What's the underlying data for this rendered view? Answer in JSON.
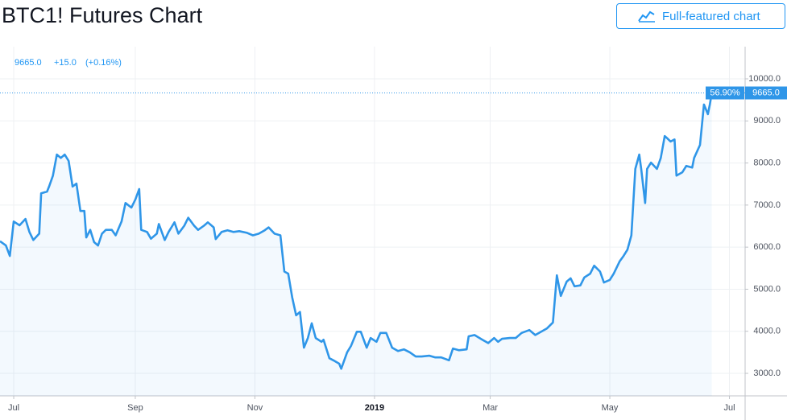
{
  "header": {
    "title": "BTC1! Futures Chart",
    "button": "Full-featured chart"
  },
  "chart_data": {
    "type": "line",
    "quote": {
      "last": "9665.0",
      "change": "+15.0",
      "change_pct": "(+0.16%)"
    },
    "price_tag": {
      "value": 9665,
      "label": "9665.0",
      "percent": "56.90%"
    },
    "color": "#2f96e8",
    "grid": true,
    "x": [
      0,
      3,
      5,
      7,
      10,
      13,
      15,
      17,
      20,
      21,
      24,
      25,
      27,
      29,
      31,
      33,
      35,
      37,
      39,
      41,
      43,
      44,
      46,
      48,
      50,
      52,
      54,
      57,
      59,
      62,
      64,
      67,
      69,
      71,
      72,
      75,
      77,
      80,
      81,
      84,
      86,
      89,
      91,
      94,
      96,
      99,
      101,
      104,
      106,
      109,
      110,
      113,
      116,
      119,
      122,
      126,
      129,
      132,
      135,
      137,
      140,
      143,
      145,
      147,
      149,
      151,
      153,
      155,
      157,
      159,
      161,
      164,
      165,
      168,
      170,
      173,
      174,
      177,
      179,
      182,
      184,
      187,
      189,
      192,
      194,
      197,
      200,
      203,
      206,
      209,
      212,
      215,
      219,
      222,
      225,
      229,
      231,
      234,
      238,
      239,
      242,
      246,
      249,
      252,
      254,
      256,
      260,
      263,
      266,
      270,
      273,
      276,
      279,
      282,
      284,
      286,
      289,
      291,
      293,
      296,
      298,
      301,
      303,
      306,
      308,
      311,
      313,
      316,
      318,
      320,
      322,
      324,
      326,
      327,
      329,
      330,
      332,
      335,
      337,
      339,
      340,
      342,
      344,
      345,
      348,
      350,
      353,
      354,
      357,
      359,
      361,
      362,
      363
    ],
    "values": [
      6140,
      6040,
      5790,
      6610,
      6520,
      6670,
      6360,
      6170,
      6320,
      7280,
      7320,
      7440,
      7700,
      8200,
      8120,
      8200,
      8050,
      7440,
      7510,
      6860,
      6860,
      6230,
      6410,
      6120,
      6040,
      6320,
      6410,
      6410,
      6280,
      6610,
      7050,
      6940,
      7130,
      7380,
      6410,
      6360,
      6200,
      6320,
      6550,
      6170,
      6360,
      6590,
      6320,
      6510,
      6700,
      6510,
      6410,
      6510,
      6590,
      6470,
      6190,
      6360,
      6400,
      6360,
      6380,
      6340,
      6280,
      6320,
      6400,
      6470,
      6320,
      6280,
      5420,
      5370,
      4810,
      4380,
      4460,
      3610,
      3840,
      4190,
      3840,
      3750,
      3800,
      3360,
      3310,
      3230,
      3110,
      3500,
      3650,
      3990,
      3990,
      3610,
      3840,
      3750,
      3960,
      3960,
      3610,
      3530,
      3570,
      3500,
      3400,
      3400,
      3420,
      3380,
      3380,
      3310,
      3590,
      3550,
      3570,
      3880,
      3910,
      3800,
      3720,
      3840,
      3750,
      3820,
      3840,
      3840,
      3960,
      4030,
      3910,
      3990,
      4070,
      4210,
      5330,
      4840,
      5180,
      5260,
      5070,
      5090,
      5280,
      5370,
      5560,
      5420,
      5160,
      5220,
      5370,
      5660,
      5790,
      5940,
      6280,
      7860,
      8200,
      7860,
      7050,
      7860,
      8010,
      7860,
      8120,
      8640,
      8600,
      8510,
      8560,
      7700,
      7780,
      7930,
      7890,
      8120,
      8430,
      9390,
      9160,
      9390,
      9665
    ],
    "xlim": [
      0,
      380
    ],
    "xticks": [
      {
        "value": 7,
        "label": "Jul"
      },
      {
        "value": 69,
        "label": "Sep"
      },
      {
        "value": 130,
        "label": "Nov"
      },
      {
        "value": 191,
        "label": "2019"
      },
      {
        "value": 250,
        "label": "Mar"
      },
      {
        "value": 311,
        "label": "May"
      },
      {
        "value": 372,
        "label": "Jul"
      }
    ],
    "ylim": [
      2465,
      10765
    ],
    "yticks": [
      {
        "value": 3000,
        "label": "3000.0"
      },
      {
        "value": 4000,
        "label": "4000.0"
      },
      {
        "value": 5000,
        "label": "5000.0"
      },
      {
        "value": 6000,
        "label": "6000.0"
      },
      {
        "value": 7000,
        "label": "7000.0"
      },
      {
        "value": 8000,
        "label": "8000.0"
      },
      {
        "value": 9000,
        "label": "9000.0"
      },
      {
        "value": 10000,
        "label": "10000.0"
      }
    ]
  }
}
